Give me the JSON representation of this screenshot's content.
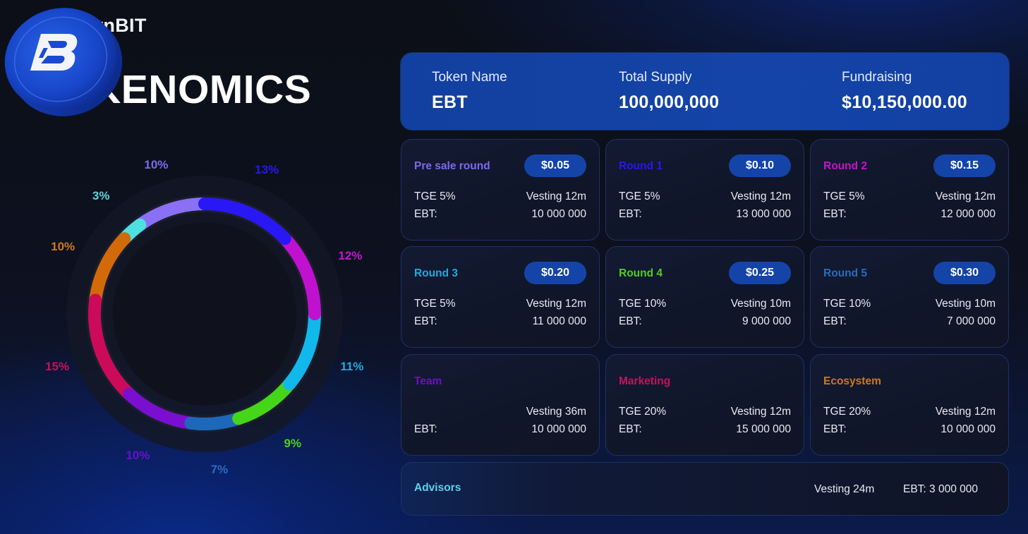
{
  "brand": {
    "name": "EarnBIT",
    "logo_icon": "earnbit-logo-icon"
  },
  "page": {
    "title": "TOKENOMICS"
  },
  "summary": {
    "token_name": {
      "label": "Token Name",
      "value": "EBT"
    },
    "total_supply": {
      "label": "Total Supply",
      "value": "100,000,000"
    },
    "fundraising": {
      "label": "Fundraising",
      "value": "$10,150,000.00"
    }
  },
  "cards": [
    {
      "title": "Pre sale round",
      "color": "#7a6af0",
      "price": "$0.05",
      "tge": "TGE 5%",
      "vesting": "Vesting 12m",
      "ebt_label": "EBT:",
      "ebt_value": "10 000 000"
    },
    {
      "title": "Round 1",
      "color": "#2a17f0",
      "price": "$0.10",
      "tge": "TGE 5%",
      "vesting": "Vesting 12m",
      "ebt_label": "EBT:",
      "ebt_value": "13 000 000"
    },
    {
      "title": "Round 2",
      "color": "#c414cc",
      "price": "$0.15",
      "tge": "TGE 5%",
      "vesting": "Vesting 12m",
      "ebt_label": "EBT:",
      "ebt_value": "12 000 000"
    },
    {
      "title": "Round 3",
      "color": "#1fa9e0",
      "price": "$0.20",
      "tge": "TGE 5%",
      "vesting": "Vesting 12m",
      "ebt_label": "EBT:",
      "ebt_value": "11 000 000"
    },
    {
      "title": "Round 4",
      "color": "#4fcf1e",
      "price": "$0.25",
      "tge": "TGE 10%",
      "vesting": "Vesting 10m",
      "ebt_label": "EBT:",
      "ebt_value": "9 000 000"
    },
    {
      "title": "Round 5",
      "color": "#2a6cc0",
      "price": "$0.30",
      "tge": "TGE 10%",
      "vesting": "Vesting 10m",
      "ebt_label": "EBT:",
      "ebt_value": "7 000 000"
    },
    {
      "title": "Team",
      "color": "#6a10c8",
      "price": "",
      "tge": "",
      "vesting": "Vesting 36m",
      "ebt_label": "EBT:",
      "ebt_value": "10 000 000"
    },
    {
      "title": "Marketing",
      "color": "#c8105a",
      "price": "",
      "tge": "TGE 20%",
      "vesting": "Vesting 12m",
      "ebt_label": "EBT:",
      "ebt_value": "15 000 000"
    },
    {
      "title": "Ecosystem",
      "color": "#d0781e",
      "price": "",
      "tge": "TGE 20%",
      "vesting": "Vesting 12m",
      "ebt_label": "EBT:",
      "ebt_value": "10 000 000"
    }
  ],
  "advisors": {
    "title": "Advisors",
    "vesting": "Vesting 24m",
    "ebt": "EBT:  3 000 000"
  },
  "chart_data": {
    "type": "pie",
    "subtype": "donut",
    "title": "TOKENOMICS",
    "categories": [
      "Round 1",
      "Round 2",
      "Round 3",
      "Round 4",
      "Round 5",
      "Team",
      "Marketing",
      "Ecosystem",
      "Advisors",
      "Pre sale round"
    ],
    "values": [
      13,
      12,
      11,
      9,
      7,
      10,
      15,
      10,
      3,
      10
    ],
    "labels": [
      "13%",
      "12%",
      "11%",
      "9%",
      "7%",
      "10%",
      "15%",
      "10%",
      "3%",
      "10%"
    ],
    "colors": [
      "#2a17f5",
      "#c010d0",
      "#10b8ec",
      "#45d61a",
      "#1d68b8",
      "#7a0fd0",
      "#cc0a5a",
      "#d26a0a",
      "#4ee0e0",
      "#8a70f5"
    ],
    "label_colors": [
      "#2a17f0",
      "#c414cc",
      "#1fa9e0",
      "#4fcf1e",
      "#2a6cc0",
      "#6a10c8",
      "#c8105a",
      "#d0781e",
      "#5fd2e0",
      "#7a6af0"
    ],
    "start_angle_deg": -90,
    "direction": "clockwise",
    "legend": "none",
    "center_image": "EBT coin"
  }
}
